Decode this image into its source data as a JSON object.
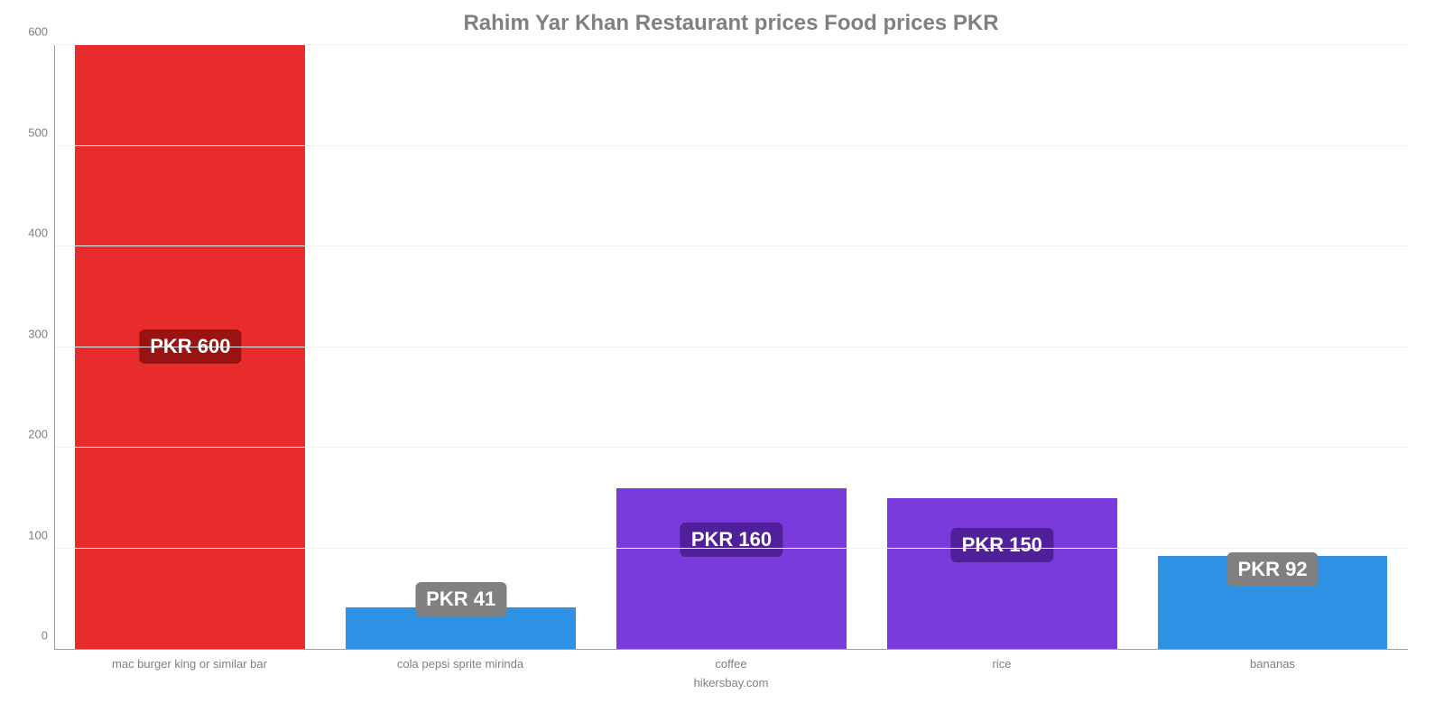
{
  "chart": {
    "type": "bar",
    "title": "Rahim Yar Khan Restaurant prices Food prices PKR",
    "title_fontsize": 24,
    "title_color": "#808080",
    "source": "hikersbay.com",
    "source_color": "#808080",
    "background_color": "#ffffff",
    "axis_color": "#a0a0a0",
    "grid_color": "#f2f2f2",
    "tick_color": "#808080",
    "xlabel_color": "#808080",
    "y": {
      "min": 0,
      "max": 600,
      "step": 100
    },
    "yticks": [
      "0",
      "100",
      "200",
      "300",
      "400",
      "500",
      "600"
    ],
    "bar_width_pct": 85,
    "badge_fontsize": 22,
    "badge_radius": 6,
    "items": [
      {
        "label": "mac burger king or similar bar",
        "value": 600,
        "color": "#e82b2b",
        "badge_text": "PKR 600",
        "badge_bg": "#9a1313",
        "badge_at_pct": 50
      },
      {
        "label": "cola pepsi sprite mirinda",
        "value": 41,
        "color": "#2f91e3",
        "badge_text": "PKR 41",
        "badge_bg": "#808080",
        "badge_at_pct": 8
      },
      {
        "label": "coffee",
        "value": 160,
        "color": "#7b3bdc",
        "badge_text": "PKR 160",
        "badge_bg": "#4f2099",
        "badge_at_pct": 18
      },
      {
        "label": "rice",
        "value": 150,
        "color": "#7b3bdc",
        "badge_text": "PKR 150",
        "badge_bg": "#4f2099",
        "badge_at_pct": 17
      },
      {
        "label": "bananas",
        "value": 92,
        "color": "#2f91e3",
        "badge_text": "PKR 92",
        "badge_bg": "#808080",
        "badge_at_pct": 13
      }
    ]
  }
}
